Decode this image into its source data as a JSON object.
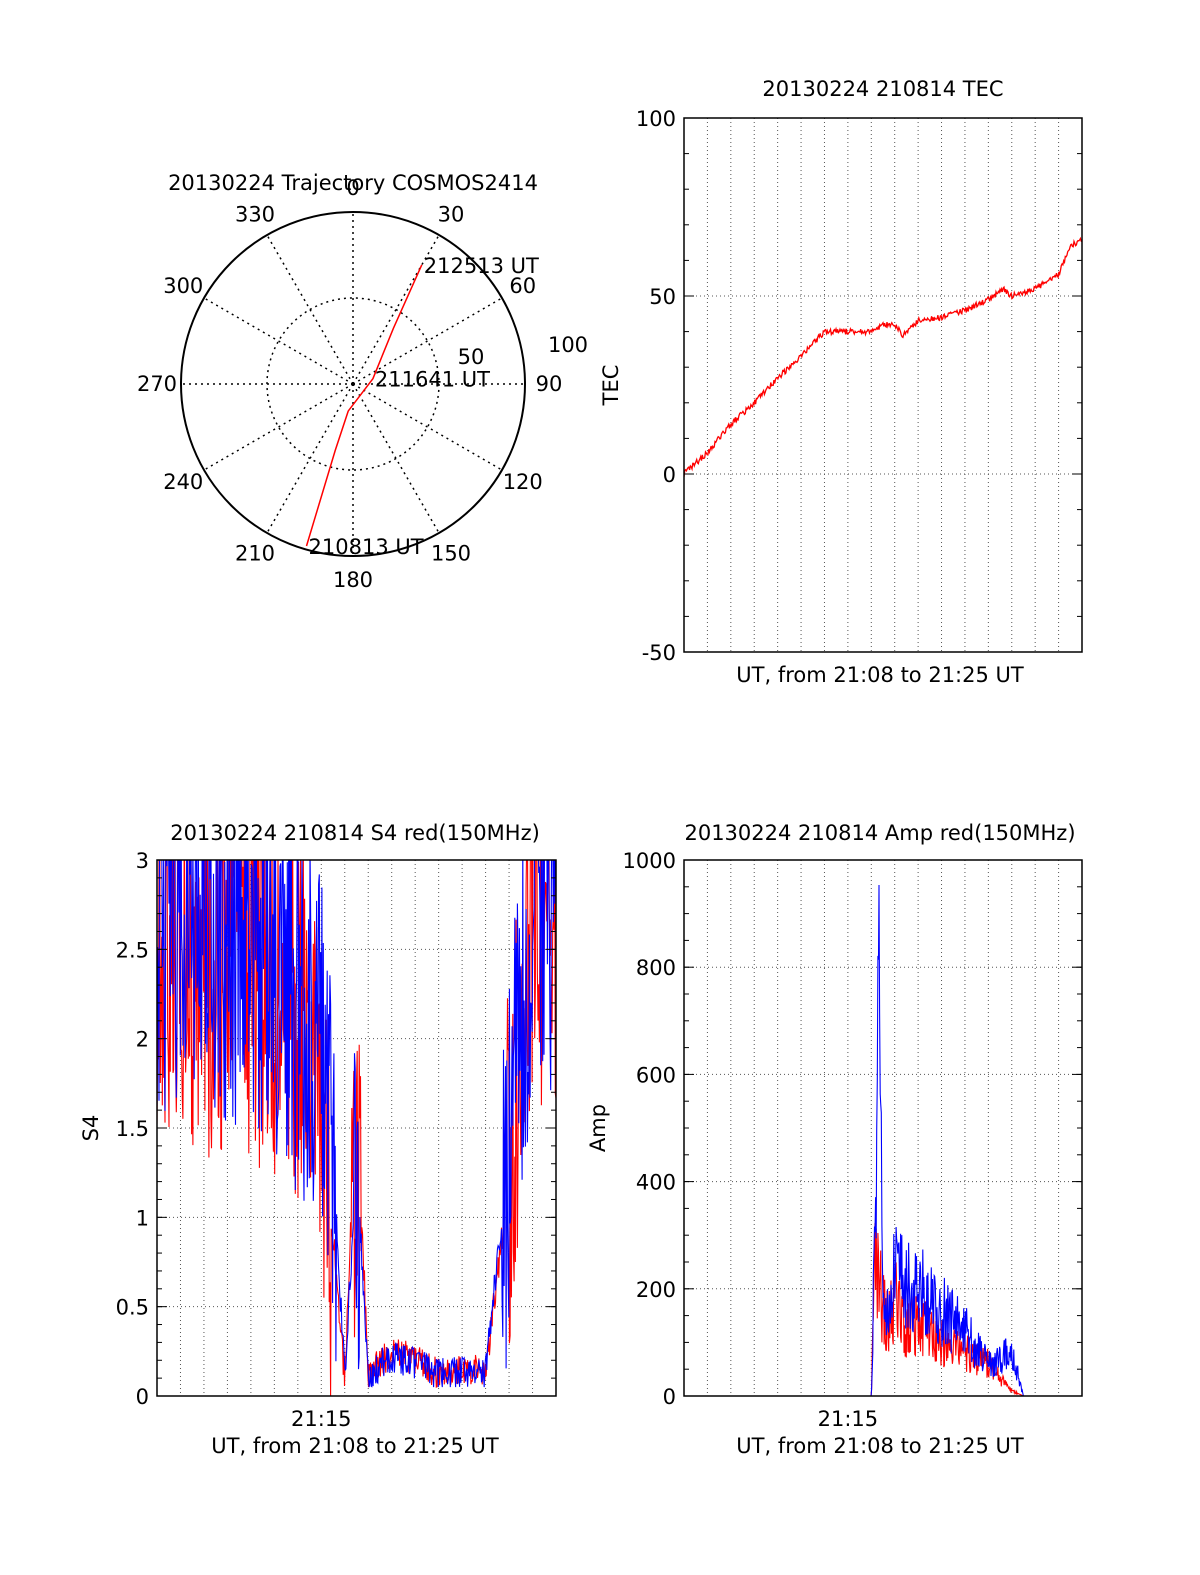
{
  "colors": {
    "red": "#ff0000",
    "blue": "#0000ff",
    "axis": "#000000",
    "grid": "#555555"
  },
  "chart_data": [
    {
      "type": "polar",
      "title": "20130224 Trajectory COSMOS2414",
      "angle_labels": [
        "0",
        "30",
        "60",
        "90",
        "120",
        "150",
        "180",
        "210",
        "240",
        "270",
        "300",
        "330"
      ],
      "radial_labels": [
        "50",
        "100"
      ],
      "rlim": [
        0,
        100
      ],
      "grid": true,
      "series": [
        {
          "color": "red",
          "points": [
            {
              "az": 196,
              "el": 2
            },
            {
              "az": 195,
              "el": 60
            },
            {
              "az": 190,
              "el": 84
            },
            {
              "az": 75,
              "el": 88
            },
            {
              "az": 36,
              "el": 60
            },
            {
              "az": 30,
              "el": 20
            }
          ]
        }
      ],
      "annotations": [
        {
          "text": "212513 UT",
          "az": 30,
          "el": 20
        },
        {
          "text": "211641 UT",
          "az": 75,
          "el": 88
        },
        {
          "text": "210813 UT",
          "az": 196,
          "el": 2
        }
      ]
    },
    {
      "type": "line",
      "title": "20130224 210814 TEC",
      "xlabel": "UT, from 21:08 to 21:25 UT",
      "ylabel": "TEC",
      "xlim": [
        "21:08",
        "21:25"
      ],
      "ylim": [
        -50,
        100
      ],
      "yticks": [
        "-50",
        "0",
        "50",
        "100"
      ],
      "xticks": [],
      "grid": true,
      "series": [
        {
          "color": "red",
          "x": [
            "21:08",
            "21:09",
            "21:10",
            "21:11",
            "21:12",
            "21:13",
            "21:14",
            "21:15",
            "21:16",
            "21:16:30",
            "21:17",
            "21:17:20",
            "21:18",
            "21:19",
            "21:20",
            "21:21",
            "21:21:40",
            "21:22",
            "21:23",
            "21:24",
            "21:24:30",
            "21:25"
          ],
          "y": [
            0,
            6,
            14,
            20,
            27,
            33,
            40,
            40,
            40,
            42,
            42,
            39,
            43,
            44,
            46,
            49,
            52,
            50,
            52,
            56,
            64,
            66
          ]
        }
      ]
    },
    {
      "type": "line",
      "title": "20130224 210814 S4 red(150MHz)",
      "xlabel": "UT, from 21:08 to 21:25 UT",
      "ylabel": "S4",
      "xlim": [
        "21:08",
        "21:25"
      ],
      "ylim": [
        0,
        3
      ],
      "yticks": [
        "0",
        "0.5",
        "1",
        "1.5",
        "2",
        "2.5",
        "3"
      ],
      "xticks": [
        "21:15"
      ],
      "grid": true,
      "series": [
        {
          "color": "red",
          "x": [
            "21:08",
            "21:09",
            "21:10",
            "21:11",
            "21:12",
            "21:13",
            "21:14",
            "21:15",
            "21:15:30",
            "21:16",
            "21:16:30",
            "21:17",
            "21:18",
            "21:19",
            "21:20",
            "21:21",
            "21:22",
            "21:23",
            "21:24",
            "21:25"
          ],
          "y": [
            2.6,
            2.5,
            2.4,
            2.5,
            2.4,
            2.3,
            2.1,
            1.4,
            0.9,
            0.1,
            1.7,
            0.12,
            0.25,
            0.2,
            0.12,
            0.15,
            0.14,
            1.2,
            2.7,
            2.6
          ]
        },
        {
          "color": "blue",
          "x": [
            "21:08",
            "21:09",
            "21:10",
            "21:11",
            "21:12",
            "21:13",
            "21:14",
            "21:15",
            "21:15:30",
            "21:16",
            "21:16:30",
            "21:17",
            "21:18",
            "21:19",
            "21:20",
            "21:21",
            "21:22",
            "21:23",
            "21:24",
            "21:25"
          ],
          "y": [
            2.7,
            2.6,
            2.7,
            2.6,
            2.5,
            2.4,
            2.2,
            1.9,
            1.3,
            0.1,
            1.3,
            0.12,
            0.22,
            0.18,
            0.12,
            0.14,
            0.12,
            1.4,
            2.8,
            2.7
          ]
        }
      ]
    },
    {
      "type": "line",
      "title": "20130224 210814 Amp red(150MHz)",
      "xlabel": "UT, from 21:08 to 21:25 UT",
      "ylabel": "Amp",
      "xlim": [
        "21:08",
        "21:25"
      ],
      "ylim": [
        0,
        1000
      ],
      "yticks": [
        "0",
        "200",
        "400",
        "600",
        "800",
        "1000"
      ],
      "xticks": [
        "21:15"
      ],
      "grid": true,
      "series": [
        {
          "color": "red",
          "x": [
            "21:08",
            "21:15",
            "21:16",
            "21:16:10",
            "21:16:20",
            "21:16:40",
            "21:17",
            "21:17:30",
            "21:18",
            "21:19",
            "21:20",
            "21:21",
            "21:22",
            "21:22:30",
            "21:23",
            "21:25"
          ],
          "y": [
            0,
            0,
            0,
            240,
            200,
            140,
            180,
            120,
            140,
            100,
            80,
            60,
            10,
            0,
            0,
            0
          ]
        },
        {
          "color": "blue",
          "x": [
            "21:08",
            "21:15",
            "21:16",
            "21:16:10",
            "21:16:20",
            "21:16:30",
            "21:17",
            "21:17:30",
            "21:18",
            "21:19",
            "21:20",
            "21:21",
            "21:22",
            "21:22:30",
            "21:23",
            "21:25"
          ],
          "y": [
            0,
            0,
            0,
            300,
            700,
            150,
            220,
            200,
            200,
            160,
            120,
            60,
            80,
            0,
            0,
            0
          ]
        }
      ]
    }
  ]
}
